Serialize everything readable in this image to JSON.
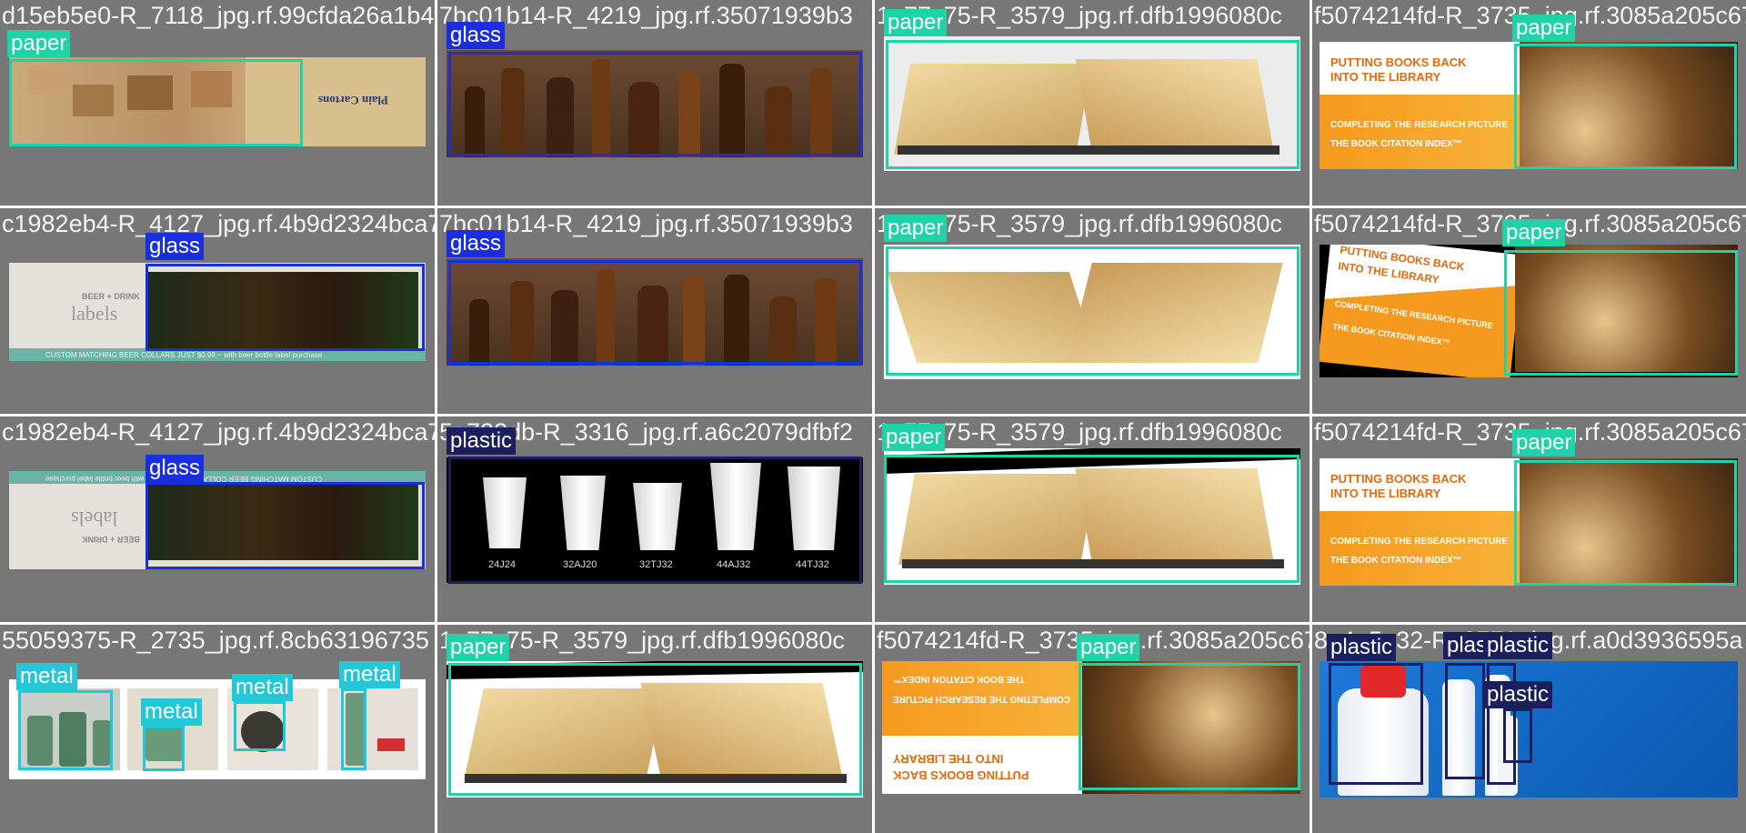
{
  "colors": {
    "paper": "#1fd2a8",
    "glass": "#1a2ee0",
    "plastic": "#1b1f5e",
    "metal": "#22c8d8",
    "cell_bg": "#777777"
  },
  "cells": [
    {
      "filename": "d15eb5e0-R_7118_jpg.rf.99cfda26a1b4f9d14",
      "labels": [
        "paper"
      ],
      "extra": {
        "sign": "Plain Cartons"
      }
    },
    {
      "filename": "7bc01b14-R_4219_jpg.rf.35071939b3",
      "labels": [
        "glass"
      ]
    },
    {
      "filename": "1a77c75-R_3579_jpg.rf.dfb1996080c",
      "labels": [
        "paper"
      ]
    },
    {
      "filename": "f5074214fd-R_3735_jpg.rf.3085a205c67",
      "labels": [
        "paper"
      ],
      "extra": {
        "line1": "PUTTING BOOKS BACK",
        "line2": "INTO THE LIBRARY",
        "line3": "COMPLETING THE RESEARCH PICTURE",
        "line4": "THE BOOK CITATION INDEX™"
      }
    },
    {
      "filename": "c1982eb4-R_4127_jpg.rf.4b9d2324bca77d08b",
      "labels": [
        "glass"
      ],
      "extra": {
        "top": "BEER + DRINK",
        "big": "labels",
        "strip": "CUSTOM MATCHING BEER COLLARS JUST $0.99 ~ with beer bottle label purchase"
      }
    },
    {
      "filename": "7bc01b14-R_4219_jpg.rf.35071939b3",
      "labels": [
        "glass"
      ]
    },
    {
      "filename": "1a77c75-R_3579_jpg.rf.dfb1996080c",
      "labels": [
        "paper"
      ]
    },
    {
      "filename": "f5074214fd-R_3735_jpg.rf.3085a205c67",
      "labels": [
        "paper"
      ],
      "extra": {
        "line1": "PUTTING BOOKS BACK",
        "line2": "INTO THE LIBRARY",
        "line3": "COMPLETING THE RESEARCH PICTURE",
        "line4": "THE BOOK CITATION INDEX™"
      }
    },
    {
      "filename": "c1982eb4-R_4127_jpg.rf.4b9d2324bca77d08b",
      "labels": [
        "glass"
      ],
      "extra": {
        "top": "BEER + DRINK",
        "big": "labels",
        "strip": "CUSTOM MATCHING BEER COLLARS JUST $0.99 ~ with beer bottle label purchase"
      }
    },
    {
      "filename": "5e723db-R_3316_jpg.rf.a6c2079dfbf2",
      "labels": [
        "plastic"
      ],
      "extra": {
        "cups": [
          "24J24",
          "32AJ20",
          "32TJ32",
          "44AJ32",
          "44TJ32"
        ]
      }
    },
    {
      "filename": "1a77c75-R_3579_jpg.rf.dfb1996080c",
      "labels": [
        "paper"
      ]
    },
    {
      "filename": "f5074214fd-R_3735_jpg.rf.3085a205c67",
      "labels": [
        "paper"
      ],
      "extra": {
        "line1": "PUTTING BOOKS BACK",
        "line2": "INTO THE LIBRARY",
        "line3": "COMPLETING THE RESEARCH PICTURE",
        "line4": "THE BOOK CITATION INDEX™"
      }
    },
    {
      "filename": "55059375-R_2735_jpg.rf.8cb63196735",
      "labels": [
        "metal",
        "metal",
        "metal",
        "metal"
      ]
    },
    {
      "filename": "1a77c75-R_3579_jpg.rf.dfb1996080c",
      "labels": [
        "paper"
      ]
    },
    {
      "filename": "f5074214fd-R_3735_jpg.rf.3085a205c67",
      "labels": [
        "paper"
      ],
      "extra": {
        "line1": "PUTTING BOOKS BACK",
        "line2": "INTO THE LIBRARY",
        "line3": "COMPLETING THE RESEARCH PICTURE",
        "line4": "THE BOOK CITATION INDEX™"
      }
    },
    {
      "filename": "8e4a5a32-R_8771_jpg.rf.a0d3936595a",
      "labels": [
        "plastic",
        "plastic",
        "plastic",
        "plastic"
      ]
    }
  ]
}
